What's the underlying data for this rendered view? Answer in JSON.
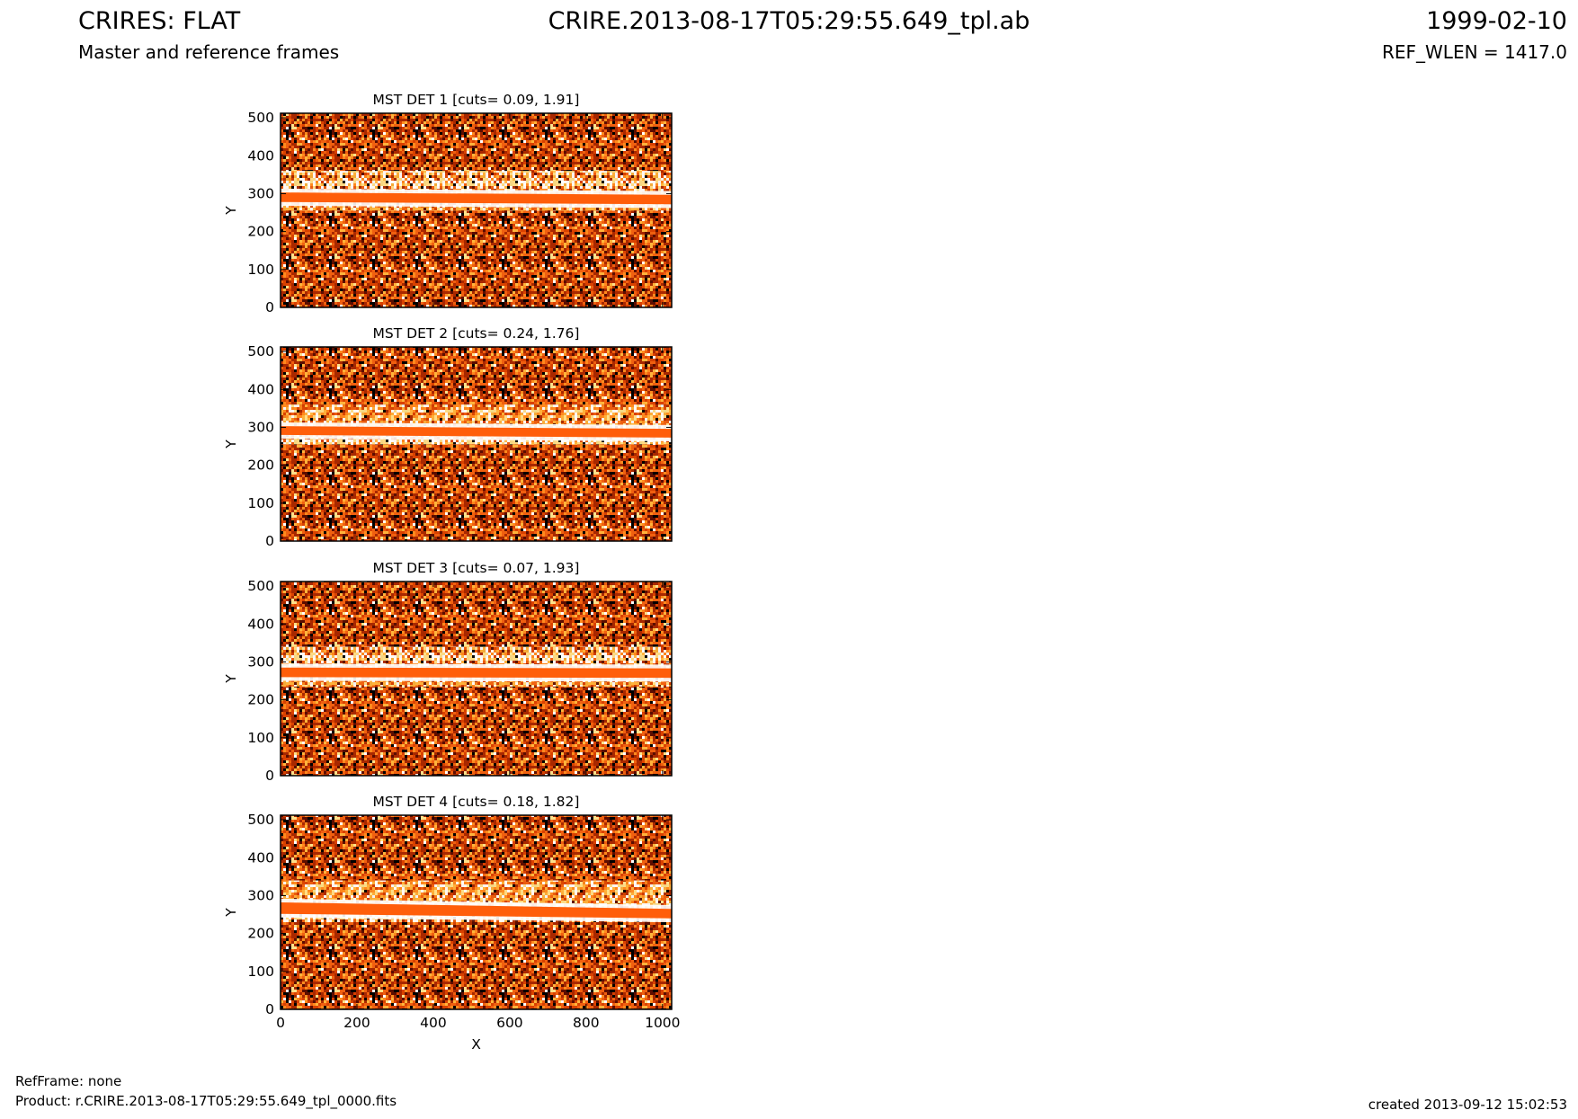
{
  "header": {
    "title": "CRIRES: FLAT",
    "subtitle": "Master and reference frames",
    "filename": "CRIRE.2013-08-17T05:29:55.649_tpl.ab",
    "date": "1999-02-10",
    "ref_wlen": "REF_WLEN = 1417.0"
  },
  "footer": {
    "refframe": "RefFrame: none",
    "product": "Product: r.CRIRE.2013-08-17T05:29:55.649_tpl_0000.fits",
    "created": "created 2013-09-12 15:02:53"
  },
  "colors": {
    "stripe": "#ff5e0a",
    "noise": [
      "#000000",
      "#5c0d00",
      "#a82800",
      "#d94100",
      "#f06010",
      "#ff8a1e",
      "#ffb43c",
      "#ffe18a",
      "#ffffff"
    ]
  },
  "chart_data": [
    {
      "type": "heatmap",
      "title": "MST DET 1 [cuts= 0.09, 1.91]",
      "ylabel": "Y",
      "xlabel": "",
      "xlim": [
        0,
        1024
      ],
      "ylim": [
        0,
        512
      ],
      "xticks": [
        "0",
        "200",
        "400",
        "600",
        "800",
        "1000"
      ],
      "yticks": [
        "0",
        "100",
        "200",
        "300",
        "400",
        "500"
      ],
      "colormap": "hot",
      "stripe": {
        "y_left": [
          278,
          303
        ],
        "y_right": [
          272,
          297
        ]
      },
      "bright_band": [
        255,
        360
      ]
    },
    {
      "type": "heatmap",
      "title": "MST DET 2 [cuts= 0.24, 1.76]",
      "ylabel": "Y",
      "xlabel": "",
      "xlim": [
        0,
        1024
      ],
      "ylim": [
        0,
        512
      ],
      "xticks": [
        "0",
        "200",
        "400",
        "600",
        "800",
        "1000"
      ],
      "yticks": [
        "0",
        "100",
        "200",
        "300",
        "400",
        "500"
      ],
      "colormap": "hot",
      "stripe": {
        "y_left": [
          280,
          303
        ],
        "y_right": [
          273,
          296
        ]
      },
      "bright_band": [
        255,
        360
      ]
    },
    {
      "type": "heatmap",
      "title": "MST DET 3 [cuts= 0.07, 1.93]",
      "ylabel": "Y",
      "xlabel": "",
      "xlim": [
        0,
        1024
      ],
      "ylim": [
        0,
        512
      ],
      "xticks": [
        "0",
        "200",
        "400",
        "600",
        "800",
        "1000"
      ],
      "yticks": [
        "0",
        "100",
        "200",
        "300",
        "400",
        "500"
      ],
      "colormap": "hot",
      "stripe": {
        "y_left": [
          260,
          285
        ],
        "y_right": [
          258,
          283
        ]
      },
      "bright_band": [
        235,
        340
      ]
    },
    {
      "type": "heatmap",
      "title": "MST DET 4 [cuts= 0.18, 1.82]",
      "ylabel": "Y",
      "xlabel": "X",
      "xlim": [
        0,
        1024
      ],
      "ylim": [
        0,
        512
      ],
      "xticks": [
        "0",
        "200",
        "400",
        "600",
        "800",
        "1000"
      ],
      "yticks": [
        "0",
        "100",
        "200",
        "300",
        "400",
        "500"
      ],
      "colormap": "hot",
      "stripe": {
        "y_left": [
          252,
          282
        ],
        "y_right": [
          240,
          265
        ]
      },
      "bright_band": [
        230,
        340
      ]
    }
  ]
}
